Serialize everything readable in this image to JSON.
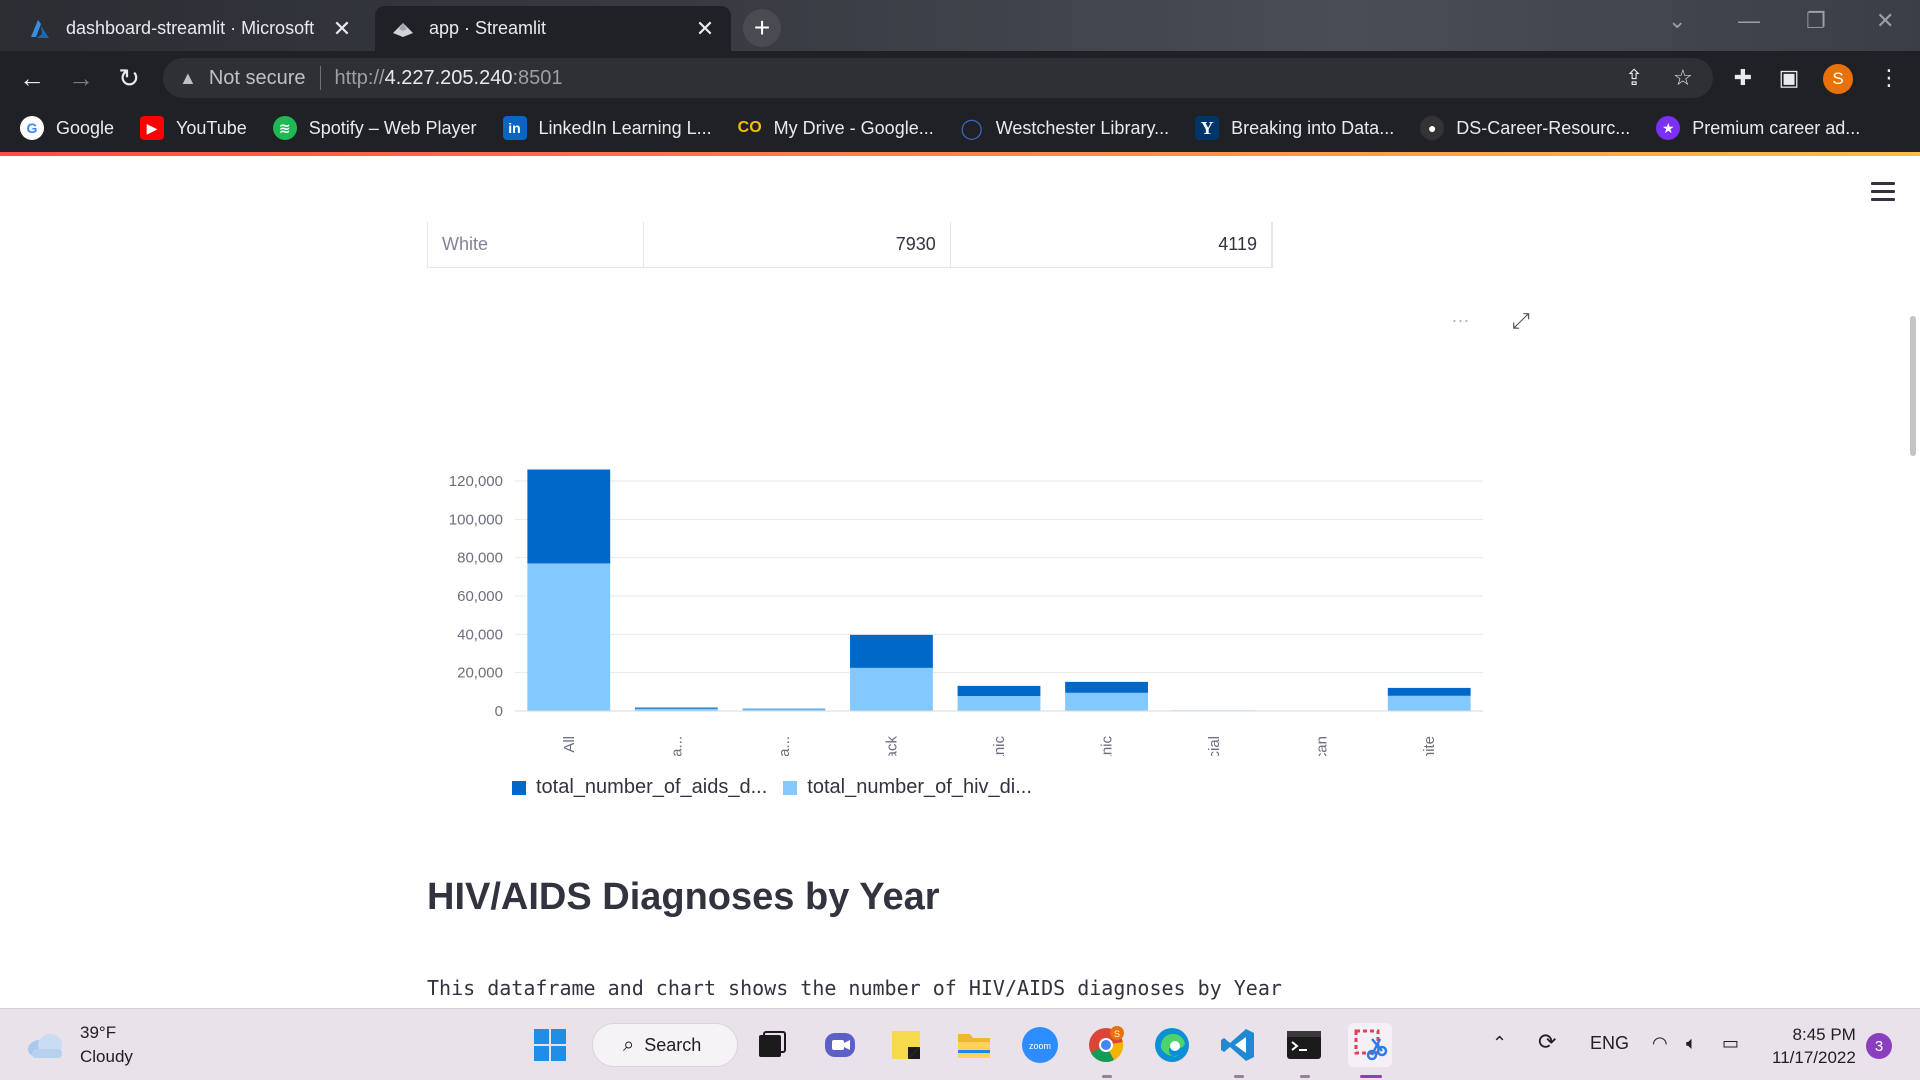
{
  "browser": {
    "tabs": [
      {
        "title": "dashboard-streamlit · Microsoft",
        "active": false
      },
      {
        "title": "app · Streamlit",
        "active": true
      }
    ],
    "new_tab_label": "+",
    "security_label": "Not secure",
    "url_scheme": "http://",
    "url_host": "4.227.205.240",
    "url_port": ":8501",
    "profile_initial": "S",
    "bookmarks": [
      {
        "label": "Google",
        "icon": "google-icon",
        "color": "#4285f4"
      },
      {
        "label": "YouTube",
        "icon": "youtube-icon",
        "color": "#ff0000"
      },
      {
        "label": "Spotify – Web Player",
        "icon": "spotify-icon",
        "color": "#1db954"
      },
      {
        "label": "LinkedIn Learning L...",
        "icon": "linkedin-icon",
        "color": "#0a66c2"
      },
      {
        "label": "My Drive - Google...",
        "icon": "drive-icon",
        "color": "#fbbc04"
      },
      {
        "label": "Westchester Library...",
        "icon": "library-icon",
        "color": "#1a3c8a"
      },
      {
        "label": "Breaking into Data...",
        "icon": "yale-icon",
        "color": "#00356b"
      },
      {
        "label": "DS-Career-Resourc...",
        "icon": "github-icon",
        "color": "#333333"
      },
      {
        "label": "Premium career ad...",
        "icon": "star-icon",
        "color": "#7b2ff7"
      }
    ]
  },
  "dataframe_row": {
    "index": "White",
    "col1": "7930",
    "col2": "4119"
  },
  "chart_data": {
    "type": "bar",
    "stacked": true,
    "categories": [
      "All",
      "Asian/Pacific Isla...",
      "Asian/Pacific Isla...",
      "Black",
      "Hispanic",
      "Latino/Hispanic",
      "Multiracial",
      "Native American",
      "White"
    ],
    "series": [
      {
        "name": "total_number_of_hiv_di...",
        "color": "#83c9ff",
        "values": [
          77000,
          1200,
          900,
          22500,
          7800,
          9500,
          200,
          50,
          7930
        ]
      },
      {
        "name": "total_number_of_aids_d...",
        "color": "#0068c9",
        "values": [
          49000,
          600,
          300,
          17200,
          5300,
          5700,
          100,
          30,
          4119
        ]
      }
    ],
    "yticks": [
      "0",
      "20,000",
      "40,000",
      "60,000",
      "80,000",
      "100,000",
      "120,000"
    ],
    "ylim": [
      0,
      120000
    ],
    "grid": true,
    "legend": "bottom-left",
    "menu_label": "..."
  },
  "legend_labels": [
    "total_number_of_aids_d...",
    "total_number_of_hiv_di..."
  ],
  "section": {
    "title": "HIV/AIDS Diagnoses by Year",
    "description": "This dataframe and chart shows the number of HIV/AIDS diagnoses by Year"
  },
  "taskbar": {
    "weather_temp": "39°F",
    "weather_desc": "Cloudy",
    "search_label": "Search",
    "language": "ENG",
    "time": "8:45 PM",
    "date": "11/17/2022",
    "notification_count": "3"
  }
}
